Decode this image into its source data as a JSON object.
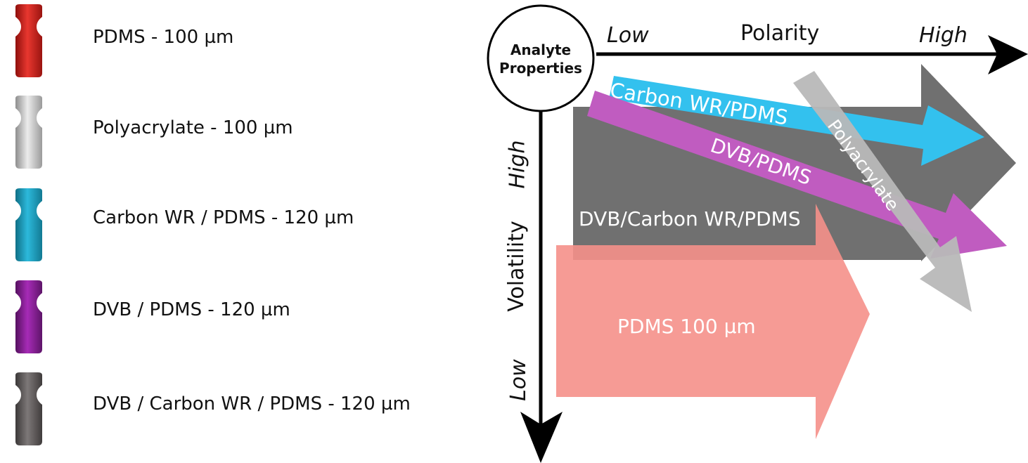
{
  "legend": {
    "items": [
      {
        "label": "PDMS - 100 µm",
        "color": "#d8201c",
        "icon": "fiber-red-icon"
      },
      {
        "label": "Polyacrylate - 100 µm",
        "color": "#c4c4c4",
        "icon": "fiber-silver-icon"
      },
      {
        "label": "Carbon WR / PDMS - 120 µm",
        "color": "#1fa6c6",
        "icon": "fiber-blue-icon"
      },
      {
        "label": "DVB / PDMS - 120 µm",
        "color": "#8a1f9a",
        "icon": "fiber-purple-icon"
      },
      {
        "label": "DVB / Carbon WR / PDMS - 120 µm",
        "color": "#6a6565",
        "icon": "fiber-gray-icon"
      }
    ]
  },
  "diagram": {
    "origin_label_line1": "Analyte",
    "origin_label_line2": "Properties",
    "x_axis": {
      "low": "Low",
      "label": "Polarity",
      "high": "High"
    },
    "y_axis": {
      "high": "High",
      "label": "Volatility",
      "low": "Low"
    },
    "bands": [
      {
        "label": "DVB/Carbon WR/PDMS",
        "color": "#6b6b6b"
      },
      {
        "label": "PDMS 100 µm",
        "color": "#f5908a"
      },
      {
        "label": "Carbon WR/PDMS",
        "color": "#33c1ee"
      },
      {
        "label": "DVB/PDMS",
        "color": "#c05cc0"
      },
      {
        "label": "Polyacrylate",
        "color": "#b8b8b8"
      }
    ]
  }
}
